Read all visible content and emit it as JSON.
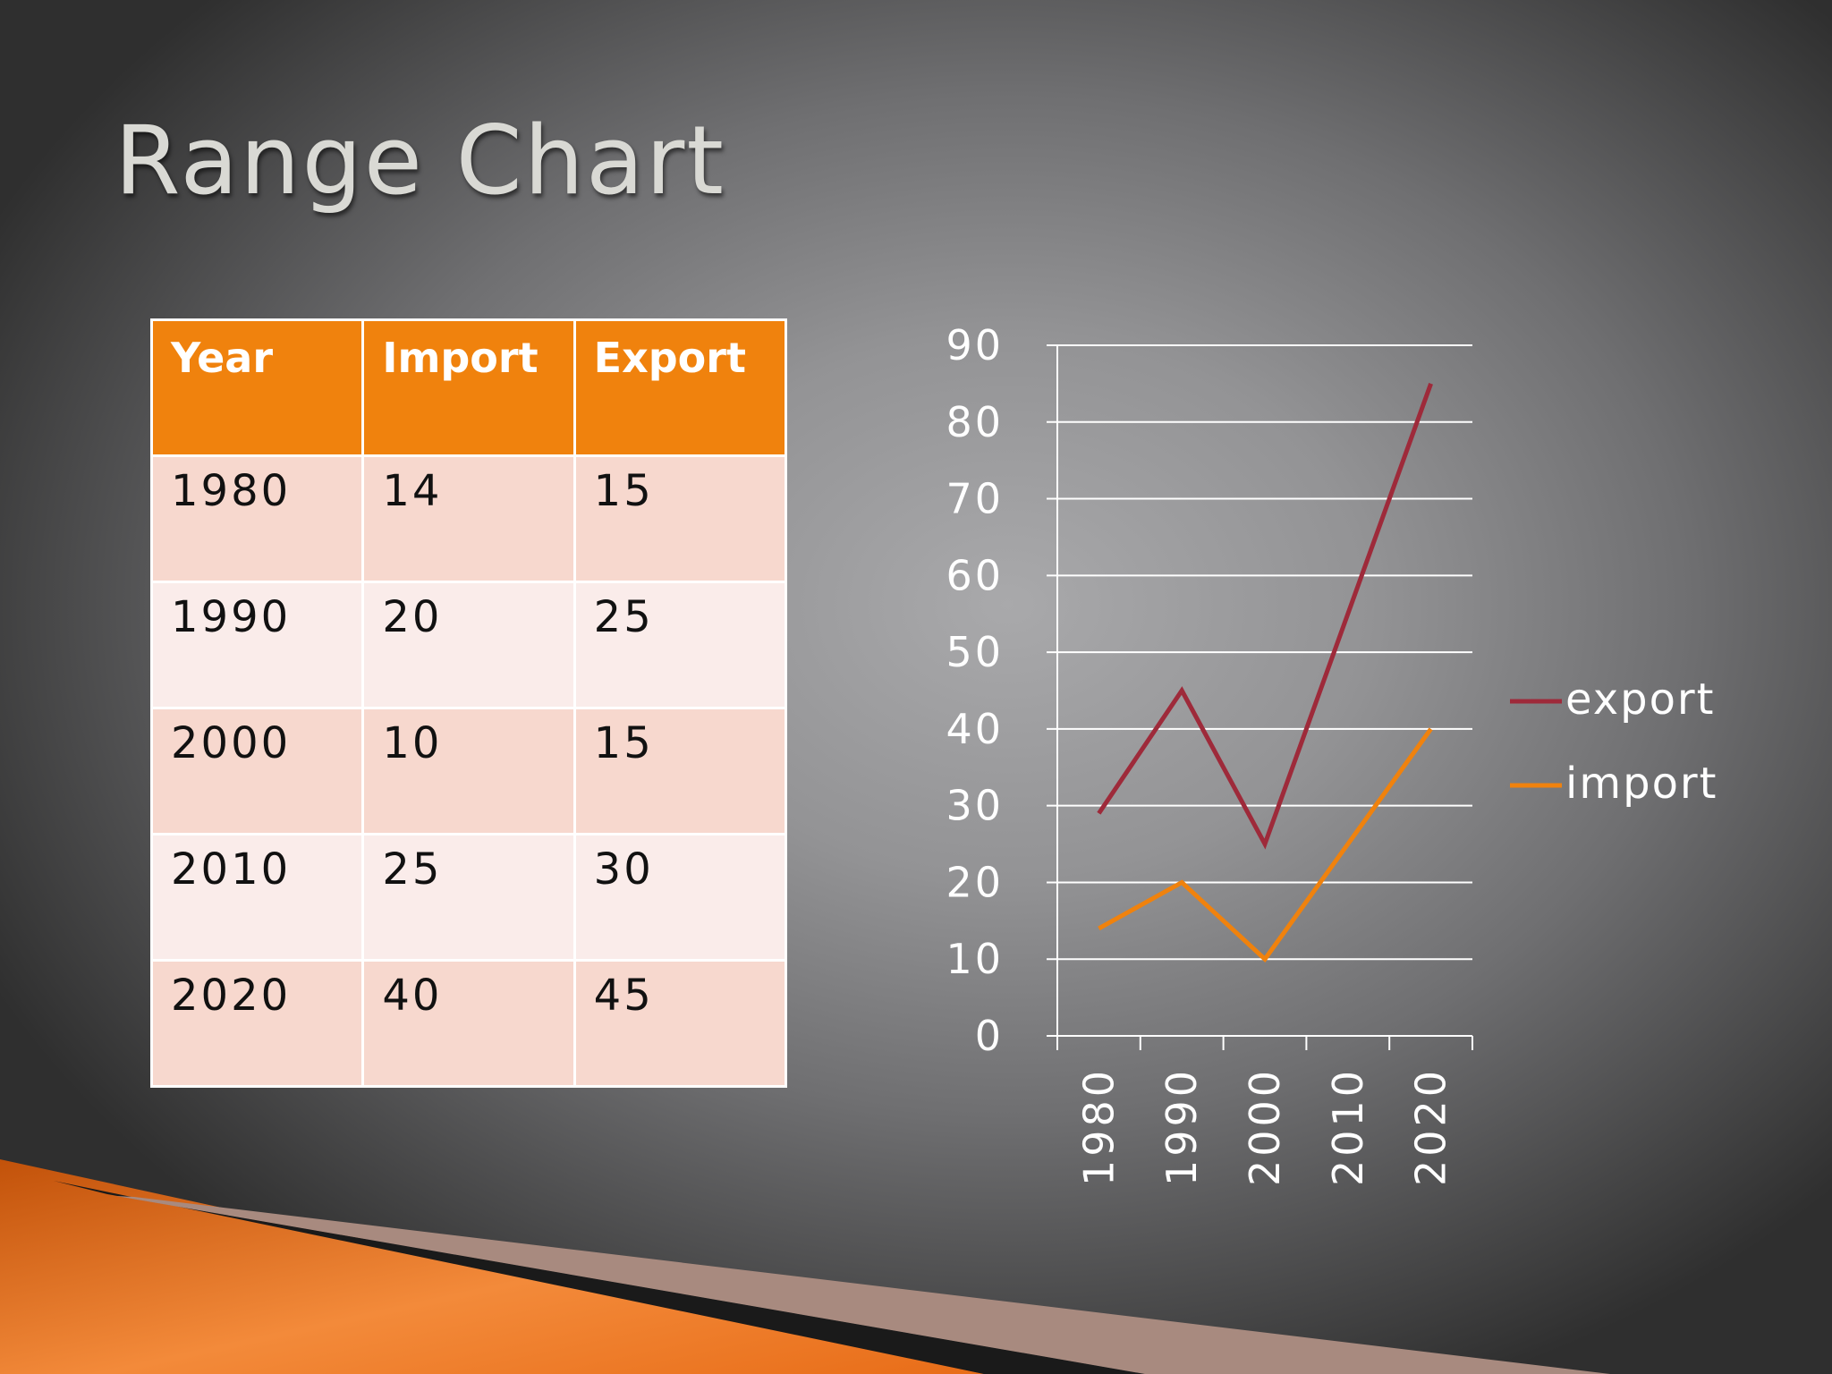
{
  "slide": {
    "title": "Range Chart"
  },
  "table": {
    "headers": [
      "Year",
      "Import",
      "Export"
    ],
    "rows": [
      [
        "1980",
        "14",
        "15"
      ],
      [
        "1990",
        "20",
        "25"
      ],
      [
        "2000",
        "10",
        "15"
      ],
      [
        "2010",
        "25",
        "30"
      ],
      [
        "2020",
        "40",
        "45"
      ]
    ]
  },
  "chart_data": {
    "type": "line",
    "categories": [
      "1980",
      "1990",
      "2000",
      "2010",
      "2020"
    ],
    "series": [
      {
        "name": "export",
        "values": [
          29,
          45,
          25,
          55,
          85
        ],
        "color": "#9e2a3a"
      },
      {
        "name": "import",
        "values": [
          14,
          20,
          10,
          25,
          40
        ],
        "color": "#f0820d"
      }
    ],
    "ylim": [
      0,
      90
    ],
    "yticks": [
      0,
      10,
      20,
      30,
      40,
      50,
      60,
      70,
      80,
      90
    ],
    "grid": true,
    "legend": "right",
    "x_tick_rotation": "vertical"
  }
}
